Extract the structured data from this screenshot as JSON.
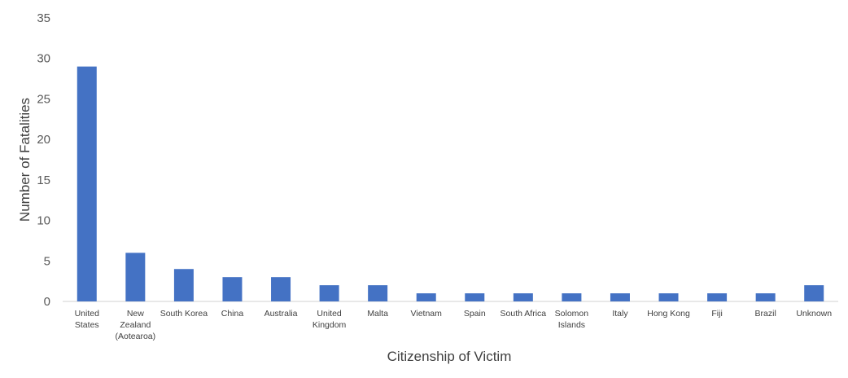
{
  "chart_data": {
    "type": "bar",
    "title": "",
    "xlabel": "Citizenship of Victim",
    "ylabel": "Number of Fatalities",
    "ylim": [
      0,
      35
    ],
    "yticks": [
      0,
      5,
      10,
      15,
      20,
      25,
      30,
      35
    ],
    "grid": false,
    "legend": "none",
    "categories": [
      [
        "United",
        "States"
      ],
      [
        "New",
        "Zealand",
        "(Aotearoa)"
      ],
      [
        "South Korea"
      ],
      [
        "China"
      ],
      [
        "Australia"
      ],
      [
        "United",
        "Kingdom"
      ],
      [
        "Malta"
      ],
      [
        "Vietnam"
      ],
      [
        "Spain"
      ],
      [
        "South Africa"
      ],
      [
        "Solomon",
        "Islands"
      ],
      [
        "Italy"
      ],
      [
        "Hong Kong"
      ],
      [
        "Fiji"
      ],
      [
        "Brazil"
      ],
      [
        "Unknown"
      ]
    ],
    "series": [
      {
        "name": "Fatalities",
        "color": "#4472c4",
        "values": [
          29,
          6,
          4,
          3,
          3,
          2,
          2,
          1,
          1,
          1,
          1,
          1,
          1,
          1,
          1,
          2
        ]
      }
    ]
  }
}
